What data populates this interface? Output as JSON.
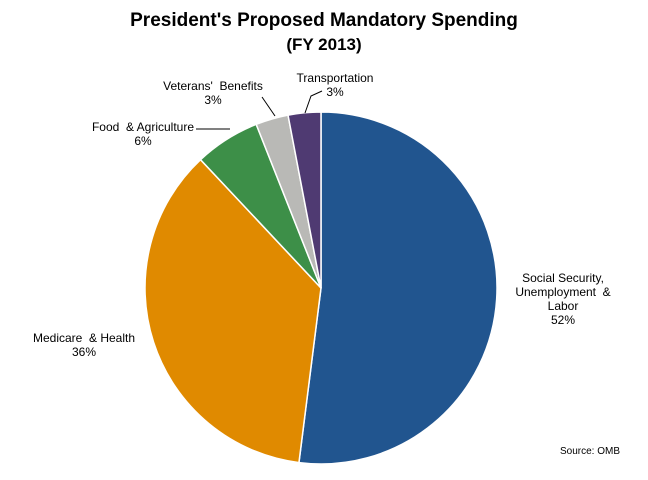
{
  "chart_data": {
    "type": "pie",
    "title": "President's Proposed Mandatory Spending",
    "subtitle": "(FY 2013)",
    "start_angle_deg": 0,
    "direction": "clockwise",
    "slices": [
      {
        "name_lines": [
          "Social Security,",
          "Unemployment  &",
          "Labor"
        ],
        "value": 52,
        "pct_label": "52%",
        "color": "#21558f"
      },
      {
        "name_lines": [
          "Medicare  & Health"
        ],
        "value": 36,
        "pct_label": "36%",
        "color": "#e08a00"
      },
      {
        "name_lines": [
          "Food  & Agriculture"
        ],
        "value": 6,
        "pct_label": "6%",
        "color": "#3d8f48"
      },
      {
        "name_lines": [
          "Veterans'  Benefits"
        ],
        "value": 3,
        "pct_label": "3%",
        "color": "#b9b9b6"
      },
      {
        "name_lines": [
          "Transportation"
        ],
        "value": 3,
        "pct_label": "3%",
        "color": "#4f3a72"
      }
    ],
    "source": "Source: OMB"
  }
}
